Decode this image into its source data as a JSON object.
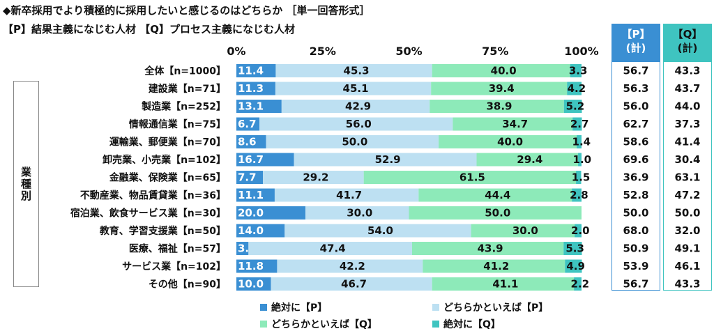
{
  "header": {
    "title": "◆新卒採用でより積極的に採用したいと感じるのはどちらか ［単一回答形式］",
    "subtitle": "【P】結果主義になじむ人材 【Q】プロセス主義になじむ人材"
  },
  "group_label": "業種別",
  "summary": {
    "p_header": "【P】\n(計)",
    "q_header": "【Q】\n(計)"
  },
  "colors": {
    "p_strong": "#3a8fd3",
    "p_weak": "#bde0f2",
    "q_weak": "#8deab9",
    "q_strong": "#3fc4c0"
  },
  "chart_data": {
    "type": "bar",
    "orientation": "horizontal",
    "stacked": true,
    "xlim": [
      0,
      100
    ],
    "x_ticks": [
      "0%",
      "25%",
      "50%",
      "75%",
      "100%"
    ],
    "categories": [
      "全体【n=1000】",
      "建設業【n=71】",
      "製造業【n=252】",
      "情報通信業【n=75】",
      "運輸業、郵便業【n=70】",
      "卸売業、小売業【n=102】",
      "金融業、保険業【n=65】",
      "不動産業、物品賃貸業【n=36】",
      "宿泊業、飲食サービス業【n=30】",
      "教育、学習支援業【n=50】",
      "医療、福祉【n=57】",
      "サービス業【n=102】",
      "その他【n=90】"
    ],
    "series": [
      {
        "name": "絶対に【P】",
        "values": [
          11.4,
          11.3,
          13.1,
          6.7,
          8.6,
          16.7,
          7.7,
          11.1,
          20.0,
          14.0,
          3.5,
          11.8,
          10.0
        ]
      },
      {
        "name": "どちらかといえば【P】",
        "values": [
          45.3,
          45.1,
          42.9,
          56.0,
          50.0,
          52.9,
          29.2,
          41.7,
          30.0,
          54.0,
          47.4,
          42.2,
          46.7
        ]
      },
      {
        "name": "どちらかといえば【Q】",
        "values": [
          40.0,
          39.4,
          38.9,
          34.7,
          40.0,
          29.4,
          61.5,
          44.4,
          50.0,
          30.0,
          43.9,
          41.2,
          41.1
        ]
      },
      {
        "name": "絶対に【Q】",
        "values": [
          3.3,
          4.2,
          5.2,
          2.7,
          1.4,
          1.0,
          1.5,
          2.8,
          0.0,
          2.0,
          5.3,
          4.9,
          2.2
        ]
      }
    ],
    "totals_p": [
      "56.7",
      "56.3",
      "56.0",
      "62.7",
      "58.6",
      "69.6",
      "36.9",
      "52.8",
      "50.0",
      "68.0",
      "50.9",
      "53.9",
      "56.7"
    ],
    "totals_q": [
      "43.3",
      "43.7",
      "44.0",
      "37.3",
      "41.4",
      "30.4",
      "63.1",
      "47.2",
      "50.0",
      "32.0",
      "49.1",
      "46.1",
      "43.3"
    ]
  }
}
